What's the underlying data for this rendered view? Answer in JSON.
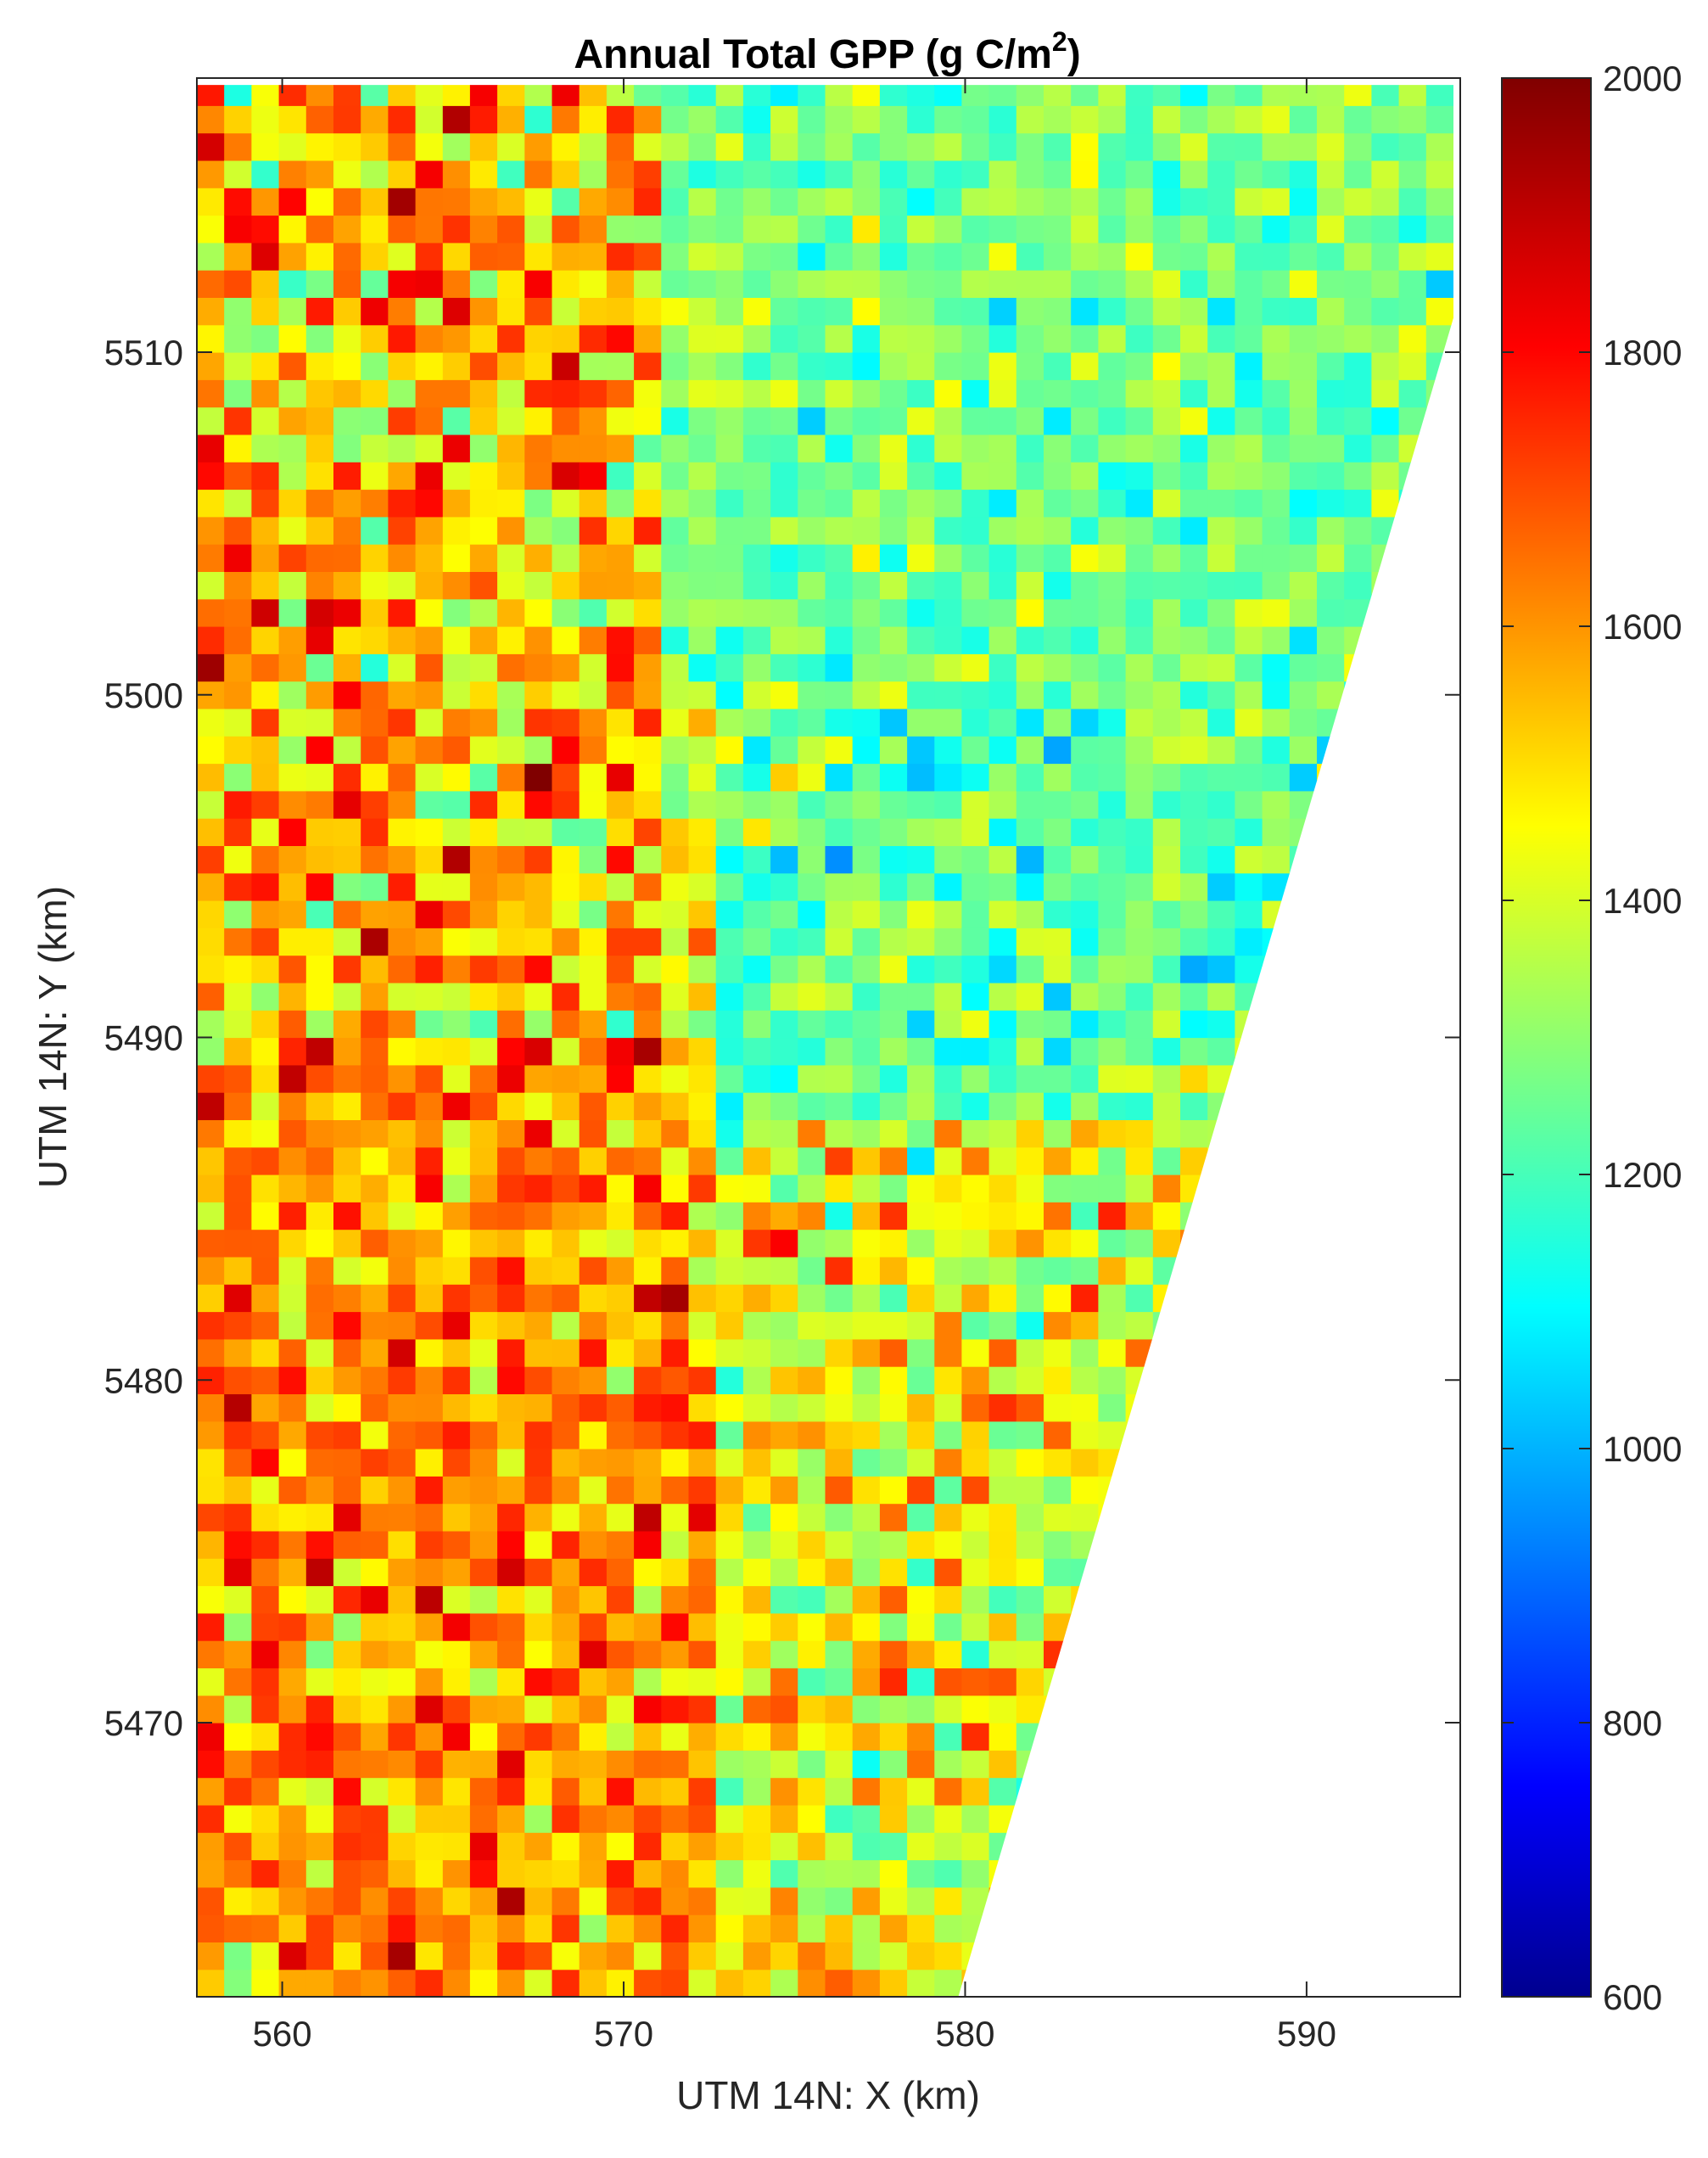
{
  "chart_data": {
    "type": "heatmap",
    "title": "Annual Total GPP (g C/m",
    "title_superscript": "2",
    "title_suffix": ")",
    "xlabel": "UTM 14N: X (km)",
    "ylabel": "UTM 14N: Y (km)",
    "xlim": [
      557.5,
      594.5
    ],
    "ylim": [
      5462,
      5518
    ],
    "x_ticks": [
      560,
      570,
      580,
      590
    ],
    "x_tick_labels": [
      "560",
      "570",
      "580",
      "590"
    ],
    "y_ticks": [
      5470,
      5480,
      5490,
      5500,
      5510
    ],
    "y_tick_labels": [
      "5470",
      "5480",
      "5490",
      "5500",
      "5510"
    ],
    "grid": false,
    "colormap": "jet",
    "colorbar": {
      "placement": "right",
      "min": 600,
      "max": 2000,
      "ticks": [
        600,
        800,
        1000,
        1200,
        1400,
        1600,
        1800,
        2000
      ],
      "tick_labels": [
        "600",
        "800",
        "1000",
        "1200",
        "1400",
        "1600",
        "1800",
        "2000"
      ]
    },
    "data_boundary": {
      "description_free": true,
      "east_edge_bottom": [
        579.8,
        5462
      ],
      "east_edge_top": [
        594.3,
        5511
      ],
      "north_edge_right": [
        594.3,
        5517.8
      ]
    },
    "value_regions": [
      {
        "x": [
          557.5,
          573.0
        ],
        "y": [
          5462,
          5490
        ],
        "mean": 1620,
        "spread": 180
      },
      {
        "x": [
          557.5,
          571.0
        ],
        "y": [
          5490,
          5518
        ],
        "mean": 1560,
        "spread": 230
      },
      {
        "x": [
          571.0,
          594.5
        ],
        "y": [
          5500,
          5518
        ],
        "mean": 1290,
        "spread": 130
      },
      {
        "x": [
          573.0,
          594.5
        ],
        "y": [
          5488,
          5500
        ],
        "mean": 1260,
        "spread": 150
      },
      {
        "x": [
          573.0,
          594.5
        ],
        "y": [
          5462,
          5488
        ],
        "mean": 1450,
        "spread": 200
      }
    ]
  },
  "colors": {
    "axes_edge": "#262626",
    "background": "#ffffff",
    "nodata": "#ffffff"
  }
}
